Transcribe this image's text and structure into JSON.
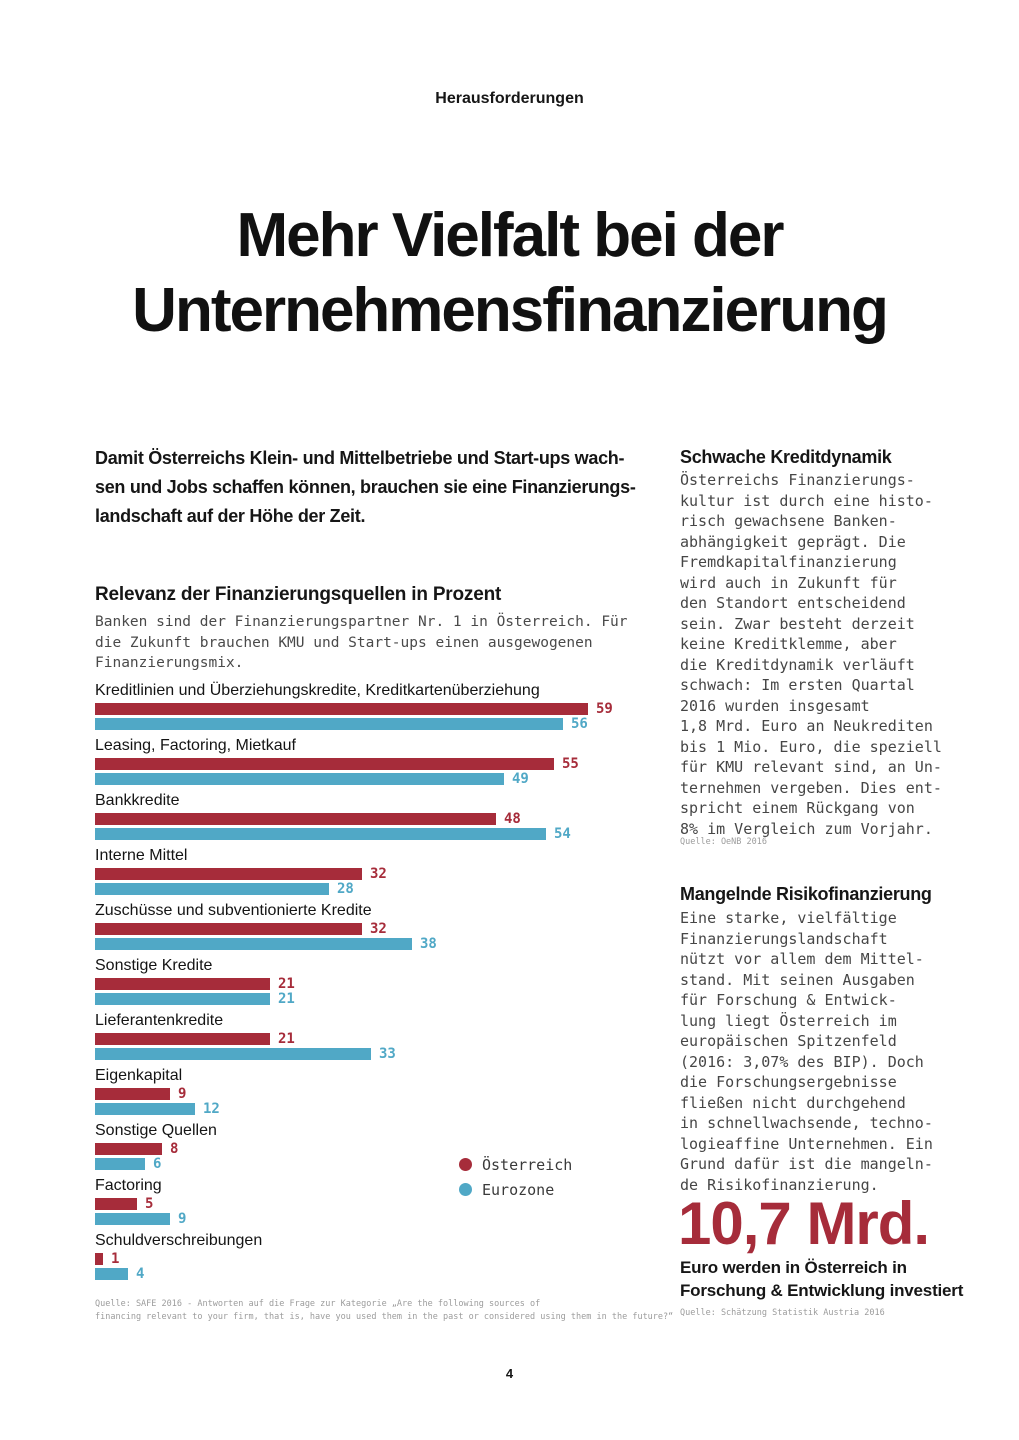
{
  "colors": {
    "austria_red": "#A62C3A",
    "eurozone_blue": "#50A8C6",
    "source_gray": "#9C9C9C"
  },
  "kicker": "Herausforderungen",
  "title": "Mehr Vielfalt bei der\nUnternehmensfinanzierung",
  "intro": "Damit Österreichs Klein- und Mittelbetriebe und Start-ups wach-\nsen und Jobs schaffen können, brauchen sie eine Finanzierungs-\nlandschaft auf der Höhe der Zeit.",
  "chart_section": {
    "heading": "Relevanz der Finanzierungsquellen in Prozent",
    "subheading": "Banken sind der Finanzierungspartner Nr. 1 in Österreich. Für\ndie Zukunft brauchen KMU und Start-ups einen ausgewogenen\nFinanzierungsmix.",
    "source": "Quelle: SAFE 2016 - Antworten auf die Frage zur Kategorie „Are the following sources of\nfinancing relevant to your firm, that is, have you used them in the past or considered using them in the future?“"
  },
  "chart_data": {
    "type": "bar",
    "orientation": "horizontal",
    "unit": "percent",
    "title": "Relevanz der Finanzierungsquellen in Prozent",
    "categories": [
      "Kreditlinien und Überziehungskredite, Kreditkartenüberziehung",
      "Leasing, Factoring, Mietkauf",
      "Bankkredite",
      "Interne Mittel",
      "Zuschüsse und subventionierte Kredite",
      "Sonstige Kredite",
      "Lieferantenkredite",
      "Eigenkapital",
      "Sonstige Quellen",
      "Factoring",
      "Schuldverschreibungen"
    ],
    "series": [
      {
        "name": "Österreich",
        "color": "#A62C3A",
        "values": [
          59,
          55,
          48,
          32,
          32,
          21,
          21,
          9,
          8,
          5,
          1
        ]
      },
      {
        "name": "Eurozone",
        "color": "#50A8C6",
        "values": [
          56,
          49,
          54,
          28,
          38,
          21,
          33,
          12,
          6,
          9,
          4
        ]
      }
    ],
    "xlim": [
      0,
      59
    ],
    "value_labels": true,
    "grid": false,
    "legend_position": "right-middle"
  },
  "right_column": {
    "section1": {
      "heading": "Schwache Kreditdynamik",
      "body": "Österreichs Finanzierungs-\nkultur ist durch eine histo-\nrisch gewachsene Banken-\nabhängigkeit geprägt. Die\nFremdkapitalfinanzierung\nwird auch in Zukunft für\nden Standort entscheidend\nsein. Zwar besteht derzeit\nkeine Kreditklemme, aber\ndie Kreditdynamik verläuft\nschwach: Im ersten Quartal\n2016 wurden insgesamt\n1,8 Mrd. Euro an Neukrediten\nbis 1 Mio. Euro, die speziell\nfür KMU relevant sind, an Un-\nternehmen vergeben. Dies ent-\nspricht einem Rückgang von\n8% im Vergleich zum Vorjahr.",
      "source": "Quelle: OeNB 2016"
    },
    "section2": {
      "heading": "Mangelnde Risikofinanzierung",
      "body": "Eine starke, vielfältige\nFinanzierungslandschaft\nnützt vor allem dem Mittel-\nstand. Mit seinen Ausgaben\nfür Forschung & Entwick-\nlung liegt Österreich im\neuropäischen Spitzenfeld\n(2016: 3,07% des BIP). Doch\ndie Forschungsergebnisse\nfließen nicht durchgehend\nin schnellwachsende, techno-\nlogieaffine Unternehmen. Ein\nGrund dafür ist die mangeln-\nde Risikofinanzierung."
    },
    "big_stat": {
      "value": "10,7 Mrd.",
      "caption": "Euro werden in Österreich in\nForschung & Entwicklung investiert",
      "source": "Quelle: Schätzung Statistik Austria 2016"
    }
  },
  "footer": {
    "page_number": "4"
  }
}
